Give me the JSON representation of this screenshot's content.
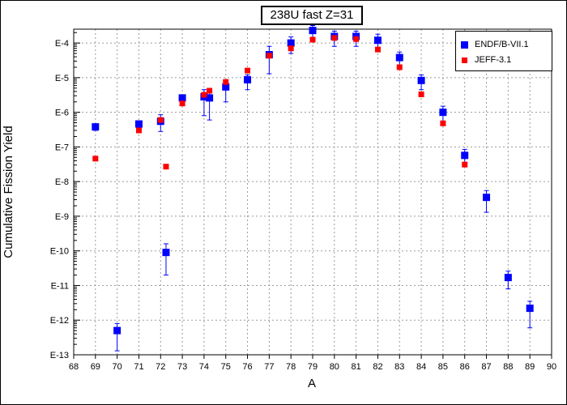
{
  "chart_data": {
    "type": "scatter",
    "title": "238U fast Z=31",
    "xlabel": "A",
    "ylabel": "Cumulative Fission Yield",
    "xlim": [
      68,
      90
    ],
    "x_ticks": [
      "68",
      "69",
      "70",
      "71",
      "72",
      "73",
      "74",
      "75",
      "76",
      "77",
      "78",
      "79",
      "80",
      "81",
      "82",
      "83",
      "84",
      "85",
      "86",
      "87",
      "88",
      "89",
      "90"
    ],
    "ylim_exp": [
      -13,
      -3.6
    ],
    "y_scale": "log",
    "y_tick_labels": [
      "E-4",
      "E-5",
      "E-6",
      "E-7",
      "E-8",
      "E-9",
      "E-10",
      "E-11",
      "E-12",
      "E-13"
    ],
    "y_tick_exps": [
      -4,
      -5,
      -6,
      -7,
      -8,
      -9,
      -10,
      -11,
      -12,
      -13
    ],
    "grid": true,
    "legend_position": "top-right",
    "series": [
      {
        "name": "ENDF/B-VII.1",
        "color": "#0000ff",
        "marker": "square-large",
        "points": [
          {
            "x": 69,
            "y": 3.8e-07,
            "lo": 3e-07,
            "hi": 4.5e-07
          },
          {
            "x": 70,
            "y": 5e-13,
            "lo": 1.3e-13,
            "hi": 8e-13
          },
          {
            "x": 71,
            "y": 4.6e-07,
            "lo": 3.6e-07,
            "hi": 5.5e-07
          },
          {
            "x": 72,
            "y": 5.5e-07,
            "lo": 2.8e-07,
            "hi": 8.5e-07
          },
          {
            "x": 72.25,
            "y": 9e-11,
            "lo": 2e-11,
            "hi": 1.6e-10
          },
          {
            "x": 73,
            "y": 2.6e-06,
            "lo": 2e-06,
            "hi": 3.2e-06
          },
          {
            "x": 74,
            "y": 2.8e-06,
            "lo": 8e-07,
            "hi": 4.5e-06
          },
          {
            "x": 74.25,
            "y": 2.6e-06,
            "lo": 6e-07,
            "hi": 4.5e-06
          },
          {
            "x": 75,
            "y": 5.4e-06,
            "lo": 2e-06,
            "hi": 8.5e-06
          },
          {
            "x": 76,
            "y": 8.7e-06,
            "lo": 4.5e-06,
            "hi": 1.2e-05
          },
          {
            "x": 77,
            "y": 4.6e-05,
            "lo": 1.3e-05,
            "hi": 8e-05
          },
          {
            "x": 78,
            "y": 0.0001,
            "lo": 5e-05,
            "hi": 0.00015
          },
          {
            "x": 79,
            "y": 0.00023,
            "lo": 0.00013,
            "hi": 0.00032
          },
          {
            "x": 80,
            "y": 0.000155,
            "lo": 8e-05,
            "hi": 0.00022
          },
          {
            "x": 81,
            "y": 0.000155,
            "lo": 8e-05,
            "hi": 0.00022
          },
          {
            "x": 82,
            "y": 0.00012,
            "lo": 6e-05,
            "hi": 0.00018
          },
          {
            "x": 83,
            "y": 3.8e-05,
            "lo": 2.2e-05,
            "hi": 5.5e-05
          },
          {
            "x": 84,
            "y": 8.3e-06,
            "lo": 4.5e-06,
            "hi": 1.2e-05
          },
          {
            "x": 85,
            "y": 1e-06,
            "lo": 5e-07,
            "hi": 1.5e-06
          },
          {
            "x": 86,
            "y": 5.7e-08,
            "lo": 3e-08,
            "hi": 8.5e-08
          },
          {
            "x": 87,
            "y": 3.5e-09,
            "lo": 1.3e-09,
            "hi": 5.5e-09
          },
          {
            "x": 88,
            "y": 1.7e-11,
            "lo": 8e-12,
            "hi": 2.6e-11
          },
          {
            "x": 89,
            "y": 2.2e-12,
            "lo": 6e-13,
            "hi": 3.5e-12
          }
        ]
      },
      {
        "name": "JEFF-3.1",
        "color": "#ff0000",
        "marker": "square-small",
        "points": [
          {
            "x": 69,
            "y": 4.6e-08
          },
          {
            "x": 71,
            "y": 3e-07
          },
          {
            "x": 72,
            "y": 6e-07
          },
          {
            "x": 72.25,
            "y": 2.7e-08
          },
          {
            "x": 73,
            "y": 1.8e-06
          },
          {
            "x": 74,
            "y": 3.2e-06
          },
          {
            "x": 74.25,
            "y": 4.2e-06
          },
          {
            "x": 75,
            "y": 7.5e-06
          },
          {
            "x": 76,
            "y": 1.6e-05
          },
          {
            "x": 77,
            "y": 4.3e-05
          },
          {
            "x": 78,
            "y": 7e-05
          },
          {
            "x": 79,
            "y": 0.000125
          },
          {
            "x": 80,
            "y": 0.00014
          },
          {
            "x": 81,
            "y": 0.00013
          },
          {
            "x": 82,
            "y": 6.5e-05
          },
          {
            "x": 83,
            "y": 2e-05
          },
          {
            "x": 84,
            "y": 3.3e-06
          },
          {
            "x": 85,
            "y": 4.8e-07
          },
          {
            "x": 86,
            "y": 3.1e-08
          }
        ]
      }
    ]
  }
}
